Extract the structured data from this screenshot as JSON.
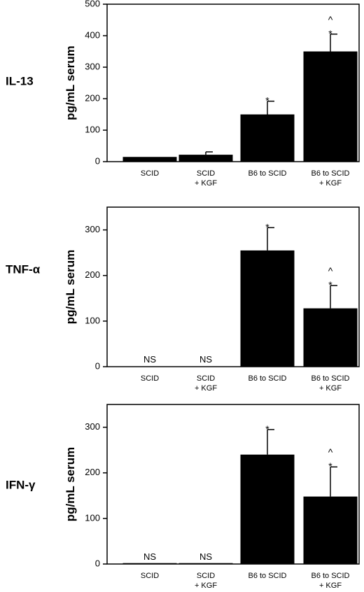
{
  "chart_data": [
    {
      "type": "bar",
      "panel_label": "IL-13",
      "ylabel": "pg/mL  serum",
      "categories": [
        [
          "SCID"
        ],
        [
          "SCID",
          "+ KGF"
        ],
        [
          "B6 to SCID"
        ],
        [
          "B6 to SCID",
          "+ KGF"
        ]
      ],
      "values": [
        15,
        22,
        150,
        350
      ],
      "errors": [
        0,
        9,
        42,
        55
      ],
      "annotations": [
        [],
        [],
        [
          "*"
        ],
        [
          "^",
          "*"
        ]
      ],
      "ylim": [
        0,
        500
      ],
      "yticks": [
        0,
        100,
        200,
        300,
        400,
        500
      ],
      "bar_color": "#000000"
    },
    {
      "type": "bar",
      "panel_label": "TNF-α",
      "ylabel": "pg/mL  serum",
      "categories": [
        [
          "SCID"
        ],
        [
          "SCID",
          "+ KGF"
        ],
        [
          "B6 to SCID"
        ],
        [
          "B6 to SCID",
          "+ KGF"
        ]
      ],
      "values": [
        0,
        0,
        255,
        128
      ],
      "errors": [
        0,
        0,
        50,
        50
      ],
      "annotations": [
        [
          "NS"
        ],
        [
          "NS"
        ],
        [
          "*"
        ],
        [
          "^",
          "*"
        ]
      ],
      "ylim": [
        0,
        350
      ],
      "yticks": [
        0,
        100,
        200,
        300
      ],
      "bar_color": "#000000"
    },
    {
      "type": "bar",
      "panel_label": "IFN-γ",
      "ylabel": "pg/mL  serum",
      "categories": [
        [
          "SCID"
        ],
        [
          "SCID",
          "+ KGF"
        ],
        [
          "B6 to SCID"
        ],
        [
          "B6 to SCID",
          "+ KGF"
        ]
      ],
      "values": [
        2,
        2,
        240,
        148
      ],
      "errors": [
        0,
        0,
        55,
        65
      ],
      "annotations": [
        [
          "NS"
        ],
        [
          "NS"
        ],
        [
          "*"
        ],
        [
          "^",
          "*"
        ]
      ],
      "ylim": [
        0,
        350
      ],
      "yticks": [
        0,
        100,
        200,
        300
      ],
      "bar_color": "#000000"
    }
  ]
}
